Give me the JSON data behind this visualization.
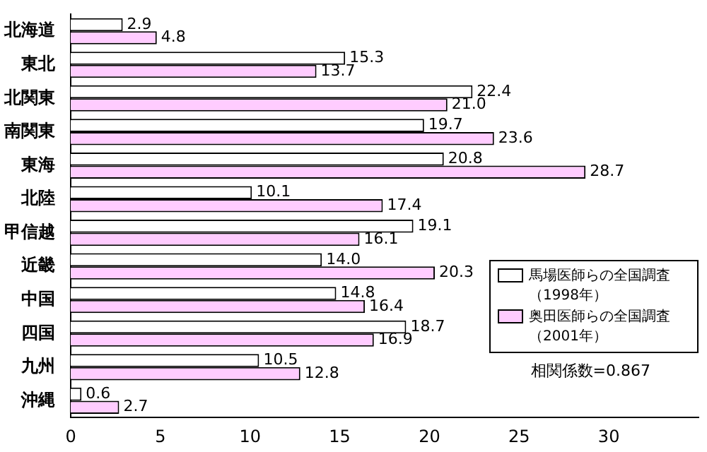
{
  "chart_data": {
    "type": "bar",
    "orientation": "horizontal",
    "categories": [
      "北海道",
      "東北",
      "北関東",
      "南関東",
      "東海",
      "北陸",
      "甲信越",
      "近畿",
      "中国",
      "四国",
      "九州",
      "沖縄"
    ],
    "series": [
      {
        "name": "馬場医師らの全国調査（1998年）",
        "color": "#ffffff",
        "values": [
          2.9,
          15.3,
          22.4,
          19.7,
          20.8,
          10.1,
          19.1,
          14.0,
          14.8,
          18.7,
          10.5,
          0.6
        ],
        "value_labels": [
          "2.9",
          "15.3",
          "22.4",
          "19.7",
          "20.8",
          "10.1",
          "19.1",
          "14.0",
          "14.8",
          "18.7",
          "10.5",
          "0.6"
        ]
      },
      {
        "name": "奥田医師らの全国調査（2001年）",
        "color": "#ffccff",
        "values": [
          4.8,
          13.7,
          21.0,
          23.6,
          28.7,
          17.4,
          16.1,
          20.3,
          16.4,
          16.9,
          12.8,
          2.7
        ],
        "value_labels": [
          "4.8",
          "13.7",
          "21.0",
          "23.6",
          "28.7",
          "17.4",
          "16.1",
          "20.3",
          "16.4",
          "16.9",
          "12.8",
          "2.7"
        ]
      }
    ],
    "xlim": [
      0,
      35
    ],
    "xticks": [
      0,
      5,
      10,
      15,
      20,
      25,
      30
    ],
    "grid": false,
    "legend": "bottom right",
    "annotations": [
      "相関係数=0.867"
    ]
  }
}
